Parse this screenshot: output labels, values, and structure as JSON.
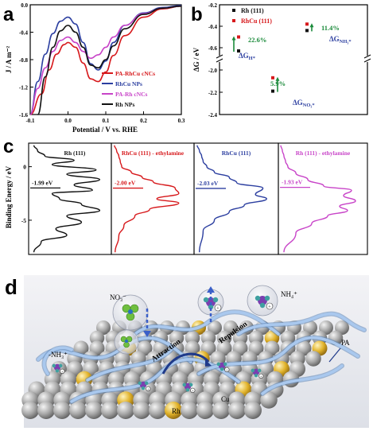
{
  "panels": {
    "a": "a",
    "b": "b",
    "c": "c",
    "d": "d"
  },
  "chart_data": [
    {
      "id": "a",
      "type": "line",
      "xlabel": "Potential / V vs. RHE",
      "ylabel": "J / A m⁻²",
      "xlim": [
        -0.1,
        0.3
      ],
      "ylim": [
        -1.6,
        0.0
      ],
      "xticks": [
        "-0.1",
        "0.0",
        "0.1",
        "0.2",
        "0.3"
      ],
      "yticks": [
        "0.0",
        "-0.4",
        "-0.8",
        "-1.2",
        "-1.6"
      ],
      "legend_position": "bottom-right",
      "series": [
        {
          "name": "PA-RhCu cNCs",
          "color": "#d7191c",
          "x": [
            -0.1,
            -0.07,
            -0.05,
            -0.03,
            -0.01,
            0.0,
            0.02,
            0.04,
            0.06,
            0.08,
            0.1,
            0.12,
            0.15,
            0.2,
            0.25,
            0.3
          ],
          "y": [
            -1.6,
            -1.3,
            -0.95,
            -0.72,
            -0.58,
            -0.55,
            -0.62,
            -0.85,
            -1.08,
            -1.12,
            -0.98,
            -0.74,
            -0.45,
            -0.18,
            -0.06,
            -0.02
          ]
        },
        {
          "name": "RhCu NPs",
          "color": "#2c3fa0",
          "x": [
            -0.1,
            -0.08,
            -0.06,
            -0.04,
            -0.02,
            0.0,
            0.02,
            0.04,
            0.06,
            0.08,
            0.1,
            0.12,
            0.15,
            0.2,
            0.25,
            0.3
          ],
          "y": [
            -1.6,
            -1.12,
            -0.72,
            -0.42,
            -0.24,
            -0.18,
            -0.28,
            -0.55,
            -0.86,
            -0.95,
            -0.82,
            -0.55,
            -0.3,
            -0.12,
            -0.04,
            -0.01
          ]
        },
        {
          "name": "PA-Rh cNCs",
          "color": "#c844c8",
          "x": [
            -0.1,
            -0.08,
            -0.06,
            -0.04,
            -0.02,
            0.0,
            0.02,
            0.04,
            0.06,
            0.08,
            0.1,
            0.12,
            0.15,
            0.2,
            0.25,
            0.3
          ],
          "y": [
            -1.6,
            -1.22,
            -0.92,
            -0.68,
            -0.52,
            -0.47,
            -0.55,
            -0.68,
            -0.78,
            -0.73,
            -0.62,
            -0.47,
            -0.3,
            -0.13,
            -0.05,
            -0.02
          ]
        },
        {
          "name": "Rh NPs",
          "color": "#111111",
          "x": [
            -0.08,
            -0.06,
            -0.04,
            -0.02,
            0.0,
            0.02,
            0.04,
            0.06,
            0.08,
            0.1,
            0.12,
            0.15,
            0.2,
            0.25,
            0.3
          ],
          "y": [
            -1.6,
            -1.05,
            -0.62,
            -0.38,
            -0.3,
            -0.4,
            -0.62,
            -0.88,
            -0.92,
            -0.8,
            -0.6,
            -0.35,
            -0.14,
            -0.05,
            -0.02
          ]
        }
      ]
    },
    {
      "id": "b",
      "type": "scatter",
      "ylabel": "ΔG / eV",
      "yticks_upper": [
        "-0.2",
        "-0.4",
        "-0.6"
      ],
      "yticks_lower": [
        "-2.0",
        "-2.2",
        "-2.4"
      ],
      "broken_y_axis": true,
      "legend": [
        {
          "name": "Rh (111)",
          "color": "#111111"
        },
        {
          "name": "RhCu (111)",
          "color": "#d7191c"
        }
      ],
      "groups": [
        {
          "label": "ΔG",
          "sub": "H*",
          "rh": -0.63,
          "rhcu": -0.5,
          "percent": "22.6%"
        },
        {
          "label": "ΔG",
          "sub": "NO₃*",
          "rh": -2.19,
          "rhcu": -2.07,
          "percent": "5.9%"
        },
        {
          "label": "ΔG",
          "sub": "NH₃*",
          "rh": -0.44,
          "rhcu": -0.38,
          "percent": "11.4%"
        }
      ]
    },
    {
      "id": "c",
      "type": "line",
      "ylabel": "Binding Energy / eV",
      "yticks": [
        "0",
        "-5"
      ],
      "subpanels": [
        {
          "title": "Rh (111)",
          "dband": "-1.99 eV",
          "color": "#111111"
        },
        {
          "title": "RhCu (111) - ethylamine",
          "dband": "-2.00 eV",
          "color": "#d7191c"
        },
        {
          "title": "RhCu (111)",
          "dband": "-2.03 eV",
          "color": "#2c3fa0"
        },
        {
          "title": "Rh (111) - ethylamine",
          "dband": "-1.93 eV",
          "color": "#c844c8"
        }
      ]
    }
  ],
  "schematic": {
    "labels": {
      "no3": "NO₃⁻",
      "nh4": "NH₄⁺",
      "attraction": "Attraction",
      "repulsion": "Repulsion",
      "pa": "PA",
      "nh3": "-NH₃⁺",
      "cu": "Cu",
      "rh": "Rh"
    },
    "colors": {
      "surface": "#a8a8a8",
      "cu_atom": "#e2b22a",
      "chain": "#8fb6e4",
      "arrow_blue": "#3a5fc8"
    }
  }
}
